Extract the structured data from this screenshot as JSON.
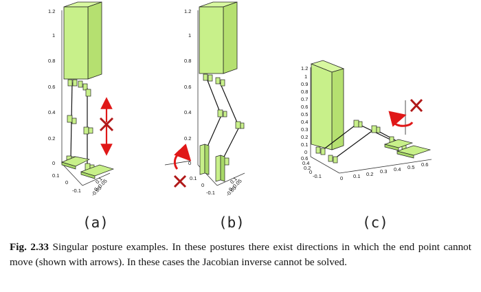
{
  "figure": {
    "panels": [
      {
        "label": "(a)",
        "z_ticks": [
          "1.2",
          "1",
          "0.8",
          "0.6",
          "0.4",
          "0.2",
          "0"
        ],
        "x_ticks": [
          "0.1",
          "0",
          "-0.1"
        ],
        "y_ticks": [
          "0.1",
          "0.05",
          "0",
          "-0.05"
        ]
      },
      {
        "label": "(b)",
        "z_ticks": [
          "1.2",
          "1",
          "0.8",
          "0.6",
          "0.4",
          "0.2",
          "0"
        ],
        "x_ticks": [
          "0.1",
          "0",
          "-0.1"
        ],
        "y_ticks": [
          "0.1",
          "0.05",
          "0",
          "-0.05"
        ]
      },
      {
        "label": "(c)",
        "z_ticks": [
          "1.2",
          "1",
          "0.9",
          "0.8",
          "0.7",
          "0.6",
          "0.5",
          "0.4",
          "0.3",
          "0.2",
          "0.1",
          "0"
        ],
        "x_ticks": [
          "0.6",
          "0.4",
          "0.2",
          "0",
          "-0.1"
        ],
        "y_ticks": [
          "0",
          "0.1",
          "0.2",
          "0.3",
          "0.4",
          "0.5",
          "0.6"
        ]
      }
    ],
    "colors": {
      "body": "#c8f08a",
      "arrow": "#e01818",
      "cross": "#b01818",
      "edge": "#222222"
    }
  },
  "caption": {
    "fig_number": "Fig. 2.33",
    "text": " Singular posture examples. In these postures there exist directions in which the end point cannot move (shown with arrows). In these cases the Jacobian inverse cannot be solved."
  }
}
